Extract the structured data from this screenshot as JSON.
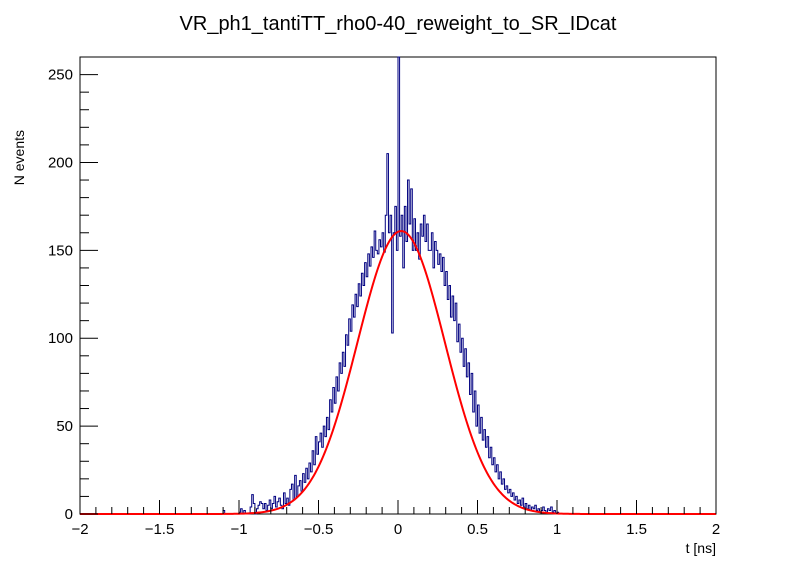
{
  "chart_data": {
    "type": "histogram",
    "title": "VR_ph1_tantiTT_rho0-40_reweight_to_SR_IDcat",
    "xlabel": "t [ns]",
    "ylabel": "N events",
    "xlim": [
      -2,
      2
    ],
    "ylim": [
      0,
      260
    ],
    "x_ticks": [
      -2,
      -1.5,
      -1,
      -0.5,
      0,
      0.5,
      1,
      1.5,
      2
    ],
    "x_tick_labels": [
      "−2",
      "−1.5",
      "−1",
      "−0.5",
      "0",
      "0.5",
      "1",
      "1.5",
      "2"
    ],
    "y_ticks": [
      0,
      50,
      100,
      150,
      200,
      250
    ],
    "y_tick_labels": [
      "0",
      "50",
      "100",
      "150",
      "200",
      "250"
    ],
    "bin_width": 0.01,
    "bin_range": [
      -2,
      2
    ],
    "series": [
      {
        "name": "histogram",
        "color": "#000080",
        "nonzero_bins": [
          [
            -1.1,
            2
          ],
          [
            -1.0,
            1
          ],
          [
            -0.99,
            3
          ],
          [
            -0.97,
            2
          ],
          [
            -0.93,
            4
          ],
          [
            -0.92,
            11
          ],
          [
            -0.91,
            6
          ],
          [
            -0.89,
            3
          ],
          [
            -0.88,
            5
          ],
          [
            -0.87,
            7
          ],
          [
            -0.86,
            6
          ],
          [
            -0.85,
            3
          ],
          [
            -0.84,
            6
          ],
          [
            -0.83,
            2
          ],
          [
            -0.82,
            5
          ],
          [
            -0.81,
            8
          ],
          [
            -0.8,
            3
          ],
          [
            -0.79,
            6
          ],
          [
            -0.78,
            10
          ],
          [
            -0.77,
            4
          ],
          [
            -0.76,
            7
          ],
          [
            -0.75,
            9
          ],
          [
            -0.74,
            5
          ],
          [
            -0.73,
            3
          ],
          [
            -0.72,
            12
          ],
          [
            -0.71,
            6
          ],
          [
            -0.7,
            9
          ],
          [
            -0.69,
            5
          ],
          [
            -0.68,
            14
          ],
          [
            -0.67,
            17
          ],
          [
            -0.66,
            8
          ],
          [
            -0.65,
            22
          ],
          [
            -0.64,
            10
          ],
          [
            -0.63,
            16
          ],
          [
            -0.62,
            19
          ],
          [
            -0.61,
            13
          ],
          [
            -0.6,
            23
          ],
          [
            -0.59,
            18
          ],
          [
            -0.58,
            26
          ],
          [
            -0.57,
            20
          ],
          [
            -0.56,
            29
          ],
          [
            -0.55,
            24
          ],
          [
            -0.54,
            36
          ],
          [
            -0.53,
            28
          ],
          [
            -0.52,
            44
          ],
          [
            -0.51,
            34
          ],
          [
            -0.5,
            41
          ],
          [
            -0.49,
            46
          ],
          [
            -0.48,
            38
          ],
          [
            -0.47,
            50
          ],
          [
            -0.46,
            44
          ],
          [
            -0.45,
            55
          ],
          [
            -0.44,
            48
          ],
          [
            -0.43,
            65
          ],
          [
            -0.42,
            58
          ],
          [
            -0.41,
            72
          ],
          [
            -0.4,
            63
          ],
          [
            -0.39,
            78
          ],
          [
            -0.38,
            70
          ],
          [
            -0.37,
            86
          ],
          [
            -0.36,
            80
          ],
          [
            -0.35,
            92
          ],
          [
            -0.34,
            84
          ],
          [
            -0.33,
            102
          ],
          [
            -0.32,
            96
          ],
          [
            -0.31,
            111
          ],
          [
            -0.3,
            104
          ],
          [
            -0.29,
            119
          ],
          [
            -0.28,
            112
          ],
          [
            -0.27,
            125
          ],
          [
            -0.26,
            118
          ],
          [
            -0.25,
            131
          ],
          [
            -0.24,
            124
          ],
          [
            -0.23,
            137
          ],
          [
            -0.22,
            130
          ],
          [
            -0.21,
            143
          ],
          [
            -0.2,
            135
          ],
          [
            -0.19,
            148
          ],
          [
            -0.18,
            141
          ],
          [
            -0.17,
            152
          ],
          [
            -0.16,
            146
          ],
          [
            -0.15,
            161
          ],
          [
            -0.14,
            150
          ],
          [
            -0.13,
            148
          ],
          [
            -0.12,
            156
          ],
          [
            -0.11,
            152
          ],
          [
            -0.1,
            160
          ],
          [
            -0.09,
            149
          ],
          [
            -0.08,
            170
          ],
          [
            -0.07,
            205
          ],
          [
            -0.06,
            160
          ],
          [
            -0.05,
            170
          ],
          [
            -0.04,
            103
          ],
          [
            -0.03,
            160
          ],
          [
            -0.02,
            175
          ],
          [
            -0.01,
            150
          ],
          [
            0.0,
            260
          ],
          [
            0.01,
            158
          ],
          [
            0.02,
            170
          ],
          [
            0.03,
            140
          ],
          [
            0.04,
            175
          ],
          [
            0.05,
            155
          ],
          [
            0.06,
            190
          ],
          [
            0.07,
            165
          ],
          [
            0.08,
            185
          ],
          [
            0.09,
            150
          ],
          [
            0.1,
            168
          ],
          [
            0.11,
            150
          ],
          [
            0.12,
            160
          ],
          [
            0.13,
            145
          ],
          [
            0.14,
            165
          ],
          [
            0.15,
            158
          ],
          [
            0.16,
            170
          ],
          [
            0.17,
            155
          ],
          [
            0.18,
            165
          ],
          [
            0.19,
            150
          ],
          [
            0.2,
            150
          ],
          [
            0.21,
            160
          ],
          [
            0.22,
            140
          ],
          [
            0.23,
            155
          ],
          [
            0.24,
            150
          ],
          [
            0.25,
            142
          ],
          [
            0.26,
            148
          ],
          [
            0.27,
            138
          ],
          [
            0.28,
            146
          ],
          [
            0.29,
            130
          ],
          [
            0.3,
            138
          ],
          [
            0.31,
            122
          ],
          [
            0.32,
            130
          ],
          [
            0.33,
            112
          ],
          [
            0.34,
            124
          ],
          [
            0.35,
            110
          ],
          [
            0.36,
            120
          ],
          [
            0.37,
            98
          ],
          [
            0.38,
            108
          ],
          [
            0.39,
            92
          ],
          [
            0.4,
            100
          ],
          [
            0.41,
            84
          ],
          [
            0.42,
            94
          ],
          [
            0.43,
            78
          ],
          [
            0.44,
            86
          ],
          [
            0.45,
            68
          ],
          [
            0.46,
            80
          ],
          [
            0.47,
            58
          ],
          [
            0.48,
            70
          ],
          [
            0.49,
            50
          ],
          [
            0.5,
            62
          ],
          [
            0.51,
            46
          ],
          [
            0.52,
            55
          ],
          [
            0.53,
            42
          ],
          [
            0.54,
            48
          ],
          [
            0.55,
            38
          ],
          [
            0.56,
            44
          ],
          [
            0.57,
            32
          ],
          [
            0.58,
            38
          ],
          [
            0.59,
            28
          ],
          [
            0.6,
            32
          ],
          [
            0.61,
            24
          ],
          [
            0.62,
            28
          ],
          [
            0.63,
            20
          ],
          [
            0.64,
            24
          ],
          [
            0.65,
            17
          ],
          [
            0.66,
            20
          ],
          [
            0.67,
            14
          ],
          [
            0.68,
            16
          ],
          [
            0.69,
            12
          ],
          [
            0.7,
            14
          ],
          [
            0.71,
            10
          ],
          [
            0.72,
            12
          ],
          [
            0.73,
            8
          ],
          [
            0.74,
            10
          ],
          [
            0.75,
            6
          ],
          [
            0.76,
            8
          ],
          [
            0.77,
            5
          ],
          [
            0.78,
            9
          ],
          [
            0.79,
            4
          ],
          [
            0.8,
            6
          ],
          [
            0.81,
            3
          ],
          [
            0.82,
            5
          ],
          [
            0.83,
            2
          ],
          [
            0.84,
            4
          ],
          [
            0.85,
            3
          ],
          [
            0.86,
            5
          ],
          [
            0.87,
            2
          ],
          [
            0.88,
            3
          ],
          [
            0.89,
            1
          ],
          [
            0.9,
            2
          ],
          [
            0.91,
            4
          ],
          [
            0.92,
            2
          ],
          [
            0.93,
            1
          ],
          [
            0.94,
            3
          ],
          [
            0.95,
            2
          ],
          [
            0.96,
            4
          ],
          [
            0.97,
            1
          ],
          [
            0.98,
            2
          ],
          [
            1.0,
            1
          ]
        ]
      },
      {
        "name": "gaussian fit",
        "color": "#ff0000",
        "function": "gaussian",
        "amplitude": 161,
        "mean": 0.02,
        "sigma": 0.275
      }
    ]
  }
}
